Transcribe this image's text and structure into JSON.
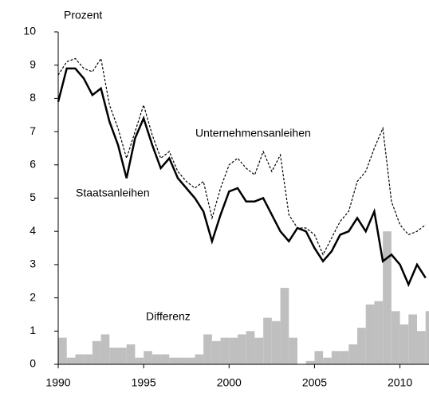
{
  "chart_data": {
    "type": "line",
    "y_label": "Prozent",
    "x": [
      1990.0,
      1990.5,
      1991.0,
      1991.5,
      1992.0,
      1992.5,
      1993.0,
      1993.5,
      1994.0,
      1994.5,
      1995.0,
      1995.5,
      1996.0,
      1996.5,
      1997.0,
      1997.5,
      1998.0,
      1998.5,
      1999.0,
      1999.5,
      2000.0,
      2000.5,
      2001.0,
      2001.5,
      2002.0,
      2002.5,
      2003.0,
      2003.5,
      2004.0,
      2004.5,
      2005.0,
      2005.5,
      2006.0,
      2006.5,
      2007.0,
      2007.5,
      2008.0,
      2008.5,
      2009.0,
      2009.5,
      2010.0,
      2010.5,
      2011.0,
      2011.5
    ],
    "series": [
      {
        "name": "Unternehmensanleihen",
        "color": "#000000",
        "style": "dashed",
        "values": [
          8.7,
          9.1,
          9.2,
          8.9,
          8.8,
          9.2,
          7.8,
          7.1,
          6.2,
          7.0,
          7.8,
          6.9,
          6.2,
          6.4,
          5.8,
          5.5,
          5.3,
          5.5,
          4.4,
          5.3,
          6.0,
          6.2,
          5.9,
          5.7,
          6.4,
          5.8,
          6.3,
          4.5,
          4.1,
          4.1,
          3.9,
          3.3,
          3.8,
          4.3,
          4.6,
          5.5,
          5.8,
          6.5,
          7.1,
          4.9,
          4.2,
          3.9,
          4.0,
          4.2
        ]
      },
      {
        "name": "Staatsanleihen",
        "color": "#000000",
        "style": "solid",
        "values": [
          7.9,
          8.9,
          8.9,
          8.6,
          8.1,
          8.3,
          7.3,
          6.6,
          5.6,
          6.8,
          7.4,
          6.6,
          5.9,
          6.2,
          5.6,
          5.3,
          5.0,
          4.6,
          3.7,
          4.5,
          5.2,
          5.3,
          4.9,
          4.9,
          5.0,
          4.5,
          4.0,
          3.7,
          4.1,
          4.0,
          3.5,
          3.1,
          3.4,
          3.9,
          4.0,
          4.4,
          4.0,
          4.6,
          3.1,
          3.3,
          3.0,
          2.4,
          3.0,
          2.6
        ]
      },
      {
        "name": "Differenz",
        "color": "#bfbfbf",
        "style": "bar",
        "values": [
          0.8,
          0.2,
          0.3,
          0.3,
          0.7,
          0.9,
          0.5,
          0.5,
          0.6,
          0.2,
          0.4,
          0.3,
          0.3,
          0.2,
          0.2,
          0.2,
          0.3,
          0.9,
          0.7,
          0.8,
          0.8,
          0.9,
          1.0,
          0.8,
          1.4,
          1.3,
          2.3,
          0.8,
          0.0,
          0.1,
          0.4,
          0.2,
          0.4,
          0.4,
          0.6,
          1.1,
          1.8,
          1.9,
          4.0,
          1.6,
          1.2,
          1.5,
          1.0,
          1.6
        ]
      }
    ],
    "xlim": [
      1990,
      2011.7
    ],
    "xticks": [
      1990,
      1995,
      2000,
      2005,
      2010
    ],
    "ylim": [
      0,
      10
    ],
    "yticks": [
      0,
      1,
      2,
      3,
      4,
      5,
      6,
      7,
      8,
      9,
      10
    ]
  }
}
